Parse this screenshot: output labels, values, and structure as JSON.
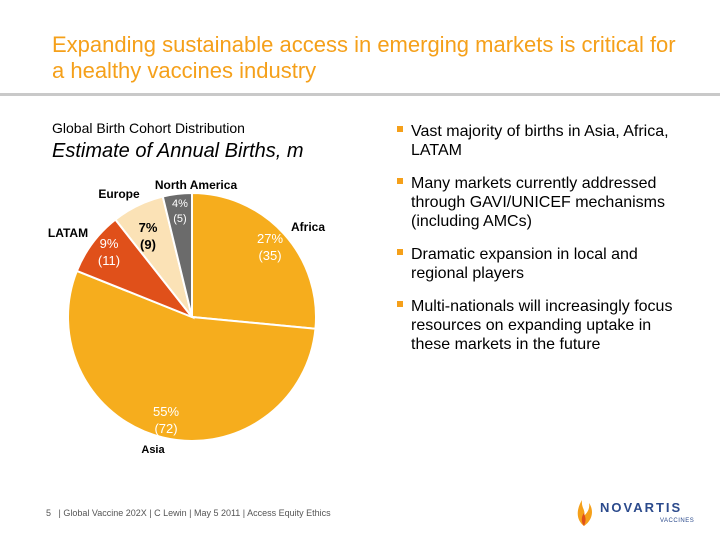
{
  "slide": {
    "title": "Expanding sustainable access in emerging  markets is critical for a healthy vaccines industry",
    "footer_page": "5",
    "footer_text": "| Global Vaccine 202X | C Lewin | May 5 2011 | Access Equity Ethics",
    "logo_text": "NOVARTIS",
    "logo_subtext": "VACCINES",
    "colors": {
      "accent": "#f5a01a",
      "rule": "#c9c9c9",
      "logo": "#2b4a8c"
    }
  },
  "bullets": [
    "Vast majority of births in Asia, Africa, LATAM",
    "Many markets currently addressed through GAVI/UNICEF mechanisms (including AMCs)",
    "Dramatic expansion in local and regional players",
    "Multi-nationals will increasingly focus resources on expanding uptake in these markets in the future"
  ],
  "chart_data": {
    "type": "pie",
    "title": "Global Birth Cohort Distribution",
    "subtitle": "Estimate of Annual Births, m",
    "slices": [
      {
        "name": "Africa",
        "percent_label": "27%",
        "value": 35,
        "value_label": "(35)",
        "color": "#f6ad1d"
      },
      {
        "name": "Asia",
        "percent_label": "55%",
        "value": 72,
        "value_label": "(72)",
        "color": "#f6ad1d"
      },
      {
        "name": "LATAM",
        "percent_label": "9%",
        "value": 11,
        "value_label": "(11)",
        "color": "#e0501a"
      },
      {
        "name": "Europe",
        "percent_label": "7%",
        "value": 9,
        "value_label": "(9)",
        "color": "#fbe2b6"
      },
      {
        "name": "North America",
        "percent_label": "4%",
        "value": 5,
        "value_label": "(5)",
        "color": "#6b6b6b"
      }
    ]
  }
}
